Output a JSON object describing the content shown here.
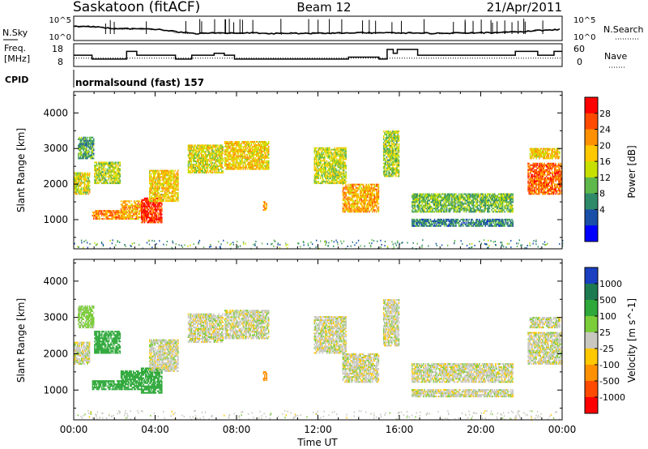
{
  "header": {
    "station": "Saskatoon (fitACF)",
    "beam": "Beam 12",
    "date": "21/Apr/2011"
  },
  "noise_panel": {
    "left_label": "N.Sky",
    "left_ticks": [
      "10^5",
      "10^0"
    ],
    "right_label": "N.Search",
    "right_ticks": [
      "10^5",
      "10^0"
    ]
  },
  "freq_panel": {
    "left_label_1": "Freq.",
    "left_label_2": "[MHz]",
    "left_ticks": [
      "18",
      "8"
    ],
    "right_label": "Nave",
    "right_ticks": [
      "60",
      "0"
    ]
  },
  "cpid": {
    "label": "CPID",
    "value": "normalsound (fast) 157"
  },
  "colorbars": {
    "power": {
      "label": "Power [dB]",
      "ticks": [
        "28",
        "24",
        "20",
        "16",
        "12",
        "8",
        "4"
      ],
      "colors": [
        "#ff0000",
        "#ff4a00",
        "#ff9000",
        "#ffc800",
        "#c8e000",
        "#5fb84a",
        "#2f8a6a",
        "#1a4fa8",
        "#0000ff"
      ]
    },
    "velocity": {
      "label": "Velocity [m s^-1]",
      "ticks": [
        "1000",
        "500",
        "100",
        "25",
        "-25",
        "-100",
        "-500",
        "-1000"
      ],
      "colors": [
        "#1a3fc0",
        "#1e7a50",
        "#2ea83a",
        "#7ccd3a",
        "#c8c8c0",
        "#ffc800",
        "#ff9000",
        "#ff4a00",
        "#ff0000"
      ]
    }
  },
  "x_axis": {
    "label": "Time UT",
    "ticks": [
      "00:00",
      "04:00",
      "08:00",
      "12:00",
      "16:00",
      "20:00",
      "00:00"
    ]
  },
  "chart_data": [
    {
      "type": "line",
      "title": "Saskatoon (fitACF) Beam 12 21/Apr/2011",
      "panel": "noise",
      "x_unit": "hours UT",
      "ylabel": "N.Sky",
      "y2label": "N.Search",
      "xlim": [
        0,
        24
      ],
      "series": [
        {
          "name": "N.Sky",
          "x": [
            0,
            2,
            4,
            5,
            6,
            8,
            10,
            12,
            14,
            16,
            18,
            20,
            22,
            24
          ],
          "values": [
            1000,
            300,
            200,
            60,
            30,
            40,
            30,
            30,
            40,
            40,
            30,
            40,
            60,
            200
          ]
        },
        {
          "name": "N.Search",
          "x": [
            0,
            2,
            4,
            5,
            6,
            8,
            10,
            12,
            14,
            16,
            18,
            20,
            22,
            24
          ],
          "values": [
            900,
            250,
            180,
            50,
            25,
            35,
            25,
            25,
            35,
            35,
            25,
            35,
            50,
            180
          ]
        }
      ]
    },
    {
      "type": "line",
      "panel": "frequency",
      "x_unit": "hours UT",
      "ylabel": "Freq. [MHz]",
      "y2label": "Nave",
      "ylim": [
        8,
        18
      ],
      "y2lim": [
        0,
        60
      ],
      "series": [
        {
          "name": "Freq.",
          "x": [
            0,
            0.9,
            2.6,
            3.1,
            5.0,
            5.8,
            6.9,
            7.4,
            7.9,
            10.0,
            13.0,
            13.5,
            15.0,
            15.4,
            15.7,
            15.9,
            16.9,
            20.6,
            21.7,
            22.8,
            23.6,
            24
          ],
          "values": [
            13,
            11,
            15,
            13,
            11,
            13,
            14,
            13,
            11,
            11,
            11,
            12,
            11,
            16,
            14,
            16,
            13,
            13,
            15,
            13,
            15,
            15
          ]
        },
        {
          "name": "Nave",
          "x": [
            0,
            24
          ],
          "values": [
            22,
            22
          ]
        }
      ]
    },
    {
      "type": "heatmap",
      "panel": "power",
      "x_unit": "hours UT",
      "xlabel": "",
      "ylabel": "Slant Range [km]",
      "xlim": [
        0,
        24
      ],
      "ylim": [
        180,
        4600
      ],
      "colorbar": "Power [dB]",
      "clim": [
        0,
        30
      ],
      "echo_regions": [
        {
          "t0": 0.0,
          "t1": 0.8,
          "r0": 1700,
          "r1": 2300,
          "value": 16
        },
        {
          "t0": 0.2,
          "t1": 1.0,
          "r0": 2700,
          "r1": 3300,
          "value": 10
        },
        {
          "t0": 0.9,
          "t1": 2.4,
          "r0": 1000,
          "r1": 1250,
          "value": 22
        },
        {
          "t0": 1.0,
          "t1": 2.3,
          "r0": 2000,
          "r1": 2600,
          "value": 14
        },
        {
          "t0": 2.3,
          "t1": 3.3,
          "r0": 1000,
          "r1": 1500,
          "value": 20
        },
        {
          "t0": 3.3,
          "t1": 4.3,
          "r0": 900,
          "r1": 1600,
          "value": 27
        },
        {
          "t0": 3.7,
          "t1": 5.1,
          "r0": 1500,
          "r1": 2400,
          "value": 18
        },
        {
          "t0": 5.6,
          "t1": 7.3,
          "r0": 2300,
          "r1": 3100,
          "value": 16
        },
        {
          "t0": 7.4,
          "t1": 9.6,
          "r0": 2400,
          "r1": 3200,
          "value": 18
        },
        {
          "t0": 9.3,
          "t1": 9.5,
          "r0": 1250,
          "r1": 1500,
          "value": 20
        },
        {
          "t0": 11.8,
          "t1": 13.4,
          "r0": 2000,
          "r1": 3000,
          "value": 15
        },
        {
          "t0": 13.2,
          "t1": 15.0,
          "r0": 1200,
          "r1": 2000,
          "value": 20
        },
        {
          "t0": 15.2,
          "t1": 16.0,
          "r0": 2200,
          "r1": 3500,
          "value": 14
        },
        {
          "t0": 16.6,
          "t1": 21.6,
          "r0": 1200,
          "r1": 1700,
          "value": 12
        },
        {
          "t0": 16.6,
          "t1": 21.6,
          "r0": 800,
          "r1": 1000,
          "value": 8
        },
        {
          "t0": 22.3,
          "t1": 24.0,
          "r0": 1700,
          "r1": 2600,
          "value": 24
        },
        {
          "t0": 22.4,
          "t1": 23.9,
          "r0": 2700,
          "r1": 3000,
          "value": 18
        }
      ]
    },
    {
      "type": "heatmap",
      "panel": "velocity",
      "x_unit": "hours UT",
      "xlabel": "Time UT",
      "ylabel": "Slant Range [km]",
      "xlim": [
        0,
        24
      ],
      "ylim": [
        180,
        4600
      ],
      "colorbar": "Velocity [m s^-1]",
      "clim": [
        -1000,
        1000
      ],
      "echo_regions": [
        {
          "t0": 0.0,
          "t1": 0.8,
          "r0": 1700,
          "r1": 2300,
          "value": 0
        },
        {
          "t0": 0.2,
          "t1": 1.0,
          "r0": 2700,
          "r1": 3300,
          "value": 50
        },
        {
          "t0": 0.9,
          "t1": 2.4,
          "r0": 1000,
          "r1": 1250,
          "value": 300
        },
        {
          "t0": 1.0,
          "t1": 2.3,
          "r0": 2000,
          "r1": 2600,
          "value": 300
        },
        {
          "t0": 2.3,
          "t1": 3.3,
          "r0": 1000,
          "r1": 1500,
          "value": 300
        },
        {
          "t0": 3.3,
          "t1": 4.3,
          "r0": 900,
          "r1": 1600,
          "value": 300
        },
        {
          "t0": 3.7,
          "t1": 5.1,
          "r0": 1500,
          "r1": 2400,
          "value": 0
        },
        {
          "t0": 5.6,
          "t1": 7.3,
          "r0": 2300,
          "r1": 3100,
          "value": 0
        },
        {
          "t0": 7.4,
          "t1": 9.6,
          "r0": 2400,
          "r1": 3200,
          "value": 0
        },
        {
          "t0": 9.3,
          "t1": 9.5,
          "r0": 1250,
          "r1": 1500,
          "value": -300
        },
        {
          "t0": 11.8,
          "t1": 13.4,
          "r0": 2000,
          "r1": 3000,
          "value": 0
        },
        {
          "t0": 13.2,
          "t1": 15.0,
          "r0": 1200,
          "r1": 2000,
          "value": 0
        },
        {
          "t0": 15.2,
          "t1": 16.0,
          "r0": 2200,
          "r1": 3500,
          "value": 0
        },
        {
          "t0": 16.6,
          "t1": 21.6,
          "r0": 1200,
          "r1": 1700,
          "value": 0
        },
        {
          "t0": 16.6,
          "t1": 21.6,
          "r0": 800,
          "r1": 1000,
          "value": 0
        },
        {
          "t0": 22.3,
          "t1": 24.0,
          "r0": 1700,
          "r1": 2600,
          "value": 0
        },
        {
          "t0": 22.4,
          "t1": 23.9,
          "r0": 2700,
          "r1": 3000,
          "value": 0
        }
      ]
    }
  ]
}
